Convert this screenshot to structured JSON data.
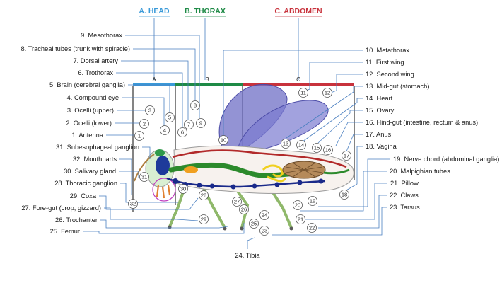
{
  "colors": {
    "head": "#3a9ad9",
    "thorax": "#1e8a46",
    "abdomen": "#c8323c",
    "wing": "#6f6fc6",
    "leader": "#4a7fc0",
    "mouthparts": "#c040c0"
  },
  "sections": [
    {
      "title": "A. HEAD",
      "letter": "A"
    },
    {
      "title": "B. THORAX",
      "letter": "B"
    },
    {
      "title": "C. ABDOMEN",
      "letter": "C"
    }
  ],
  "left_labels": [
    {
      "n": "9",
      "text": "9. Mesothorax"
    },
    {
      "n": "8",
      "text": "8. Tracheal tubes (trunk with spiracle)"
    },
    {
      "n": "7",
      "text": "7. Dorsal artery"
    },
    {
      "n": "6",
      "text": "6. Trothorax"
    },
    {
      "n": "5",
      "text": "5. Brain (cerebral ganglia)"
    },
    {
      "n": "4",
      "text": "4. Compound eye"
    },
    {
      "n": "3",
      "text": "3. Ocelli (upper)"
    },
    {
      "n": "2",
      "text": "2. Ocelli (lower)"
    },
    {
      "n": "1",
      "text": "1. Antenna"
    },
    {
      "n": "31",
      "text": "31. Subesophageal ganglion"
    },
    {
      "n": "32",
      "text": "32. Mouthparts"
    },
    {
      "n": "30",
      "text": "30. Salivary gland"
    },
    {
      "n": "28",
      "text": "28. Thoracic ganglion"
    },
    {
      "n": "29",
      "text": "29. Coxa"
    },
    {
      "n": "27",
      "text": "27. Fore-gut (crop, gizzard)"
    },
    {
      "n": "26",
      "text": "26. Trochanter"
    },
    {
      "n": "25",
      "text": "25. Femur"
    }
  ],
  "right_labels": [
    {
      "n": "10",
      "text": "10. Metathorax"
    },
    {
      "n": "11",
      "text": "11. First wing"
    },
    {
      "n": "12",
      "text": "12. Second wing"
    },
    {
      "n": "13",
      "text": "13. Mid-gut (stomach)"
    },
    {
      "n": "14",
      "text": "14. Heart"
    },
    {
      "n": "15",
      "text": "15. Ovary"
    },
    {
      "n": "16",
      "text": "16. Hind-gut (intestine, rectum & anus)"
    },
    {
      "n": "17",
      "text": "17. Anus"
    },
    {
      "n": "18",
      "text": "18. Vagina"
    },
    {
      "n": "19",
      "text": "19. Nerve chord (abdominal ganglia)"
    },
    {
      "n": "20",
      "text": "20. Malpighian tubes"
    },
    {
      "n": "21",
      "text": "21. Pillow"
    },
    {
      "n": "22",
      "text": "22. Claws"
    },
    {
      "n": "23",
      "text": "23. Tarsus"
    }
  ],
  "bottom_label": {
    "n": "24",
    "text": "24. Tibia"
  }
}
